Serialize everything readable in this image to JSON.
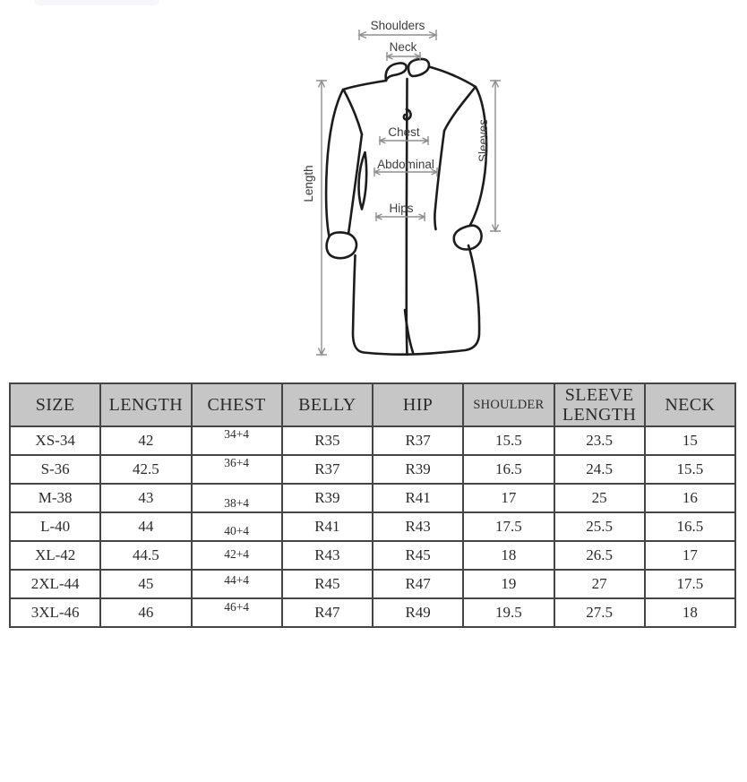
{
  "diagram": {
    "labels": {
      "shoulders": "Shoulders",
      "neck": "Neck",
      "chest": "Chest",
      "abdominal": "Abdominal",
      "hips": "Hips",
      "length": "Length",
      "sleeves": "Sleeves"
    }
  },
  "size_chart": {
    "columns": [
      "SIZE",
      "LENGTH",
      "CHEST",
      "BELLY",
      "HIP",
      "SHOULDER",
      "SLEEVE LENGTH",
      "NECK"
    ],
    "rows": [
      [
        "XS-34",
        "42",
        "34+4",
        "R35",
        "R37",
        "15.5",
        "23.5",
        "15"
      ],
      [
        "S-36",
        "42.5",
        "36+4",
        "R37",
        "R39",
        "16.5",
        "24.5",
        "15.5"
      ],
      [
        "M-38",
        "43",
        "38+4",
        "R39",
        "R41",
        "17",
        "25",
        "16"
      ],
      [
        "L-40",
        "44",
        "40+4",
        "R41",
        "R43",
        "17.5",
        "25.5",
        "16.5"
      ],
      [
        "XL-42",
        "44.5",
        "42+4",
        "R43",
        "R45",
        "18",
        "26.5",
        "17"
      ],
      [
        "2XL-44",
        "45",
        "44+4",
        "R45",
        "R47",
        "19",
        "27",
        "17.5"
      ],
      [
        "3XL-46",
        "46",
        "46+4",
        "R47",
        "R49",
        "19.5",
        "27.5",
        "18"
      ]
    ]
  },
  "colors": {
    "page_bg": "#ffffff",
    "artifact_bg": "#f7f7f9",
    "header_bg": "#c6c6c6",
    "table_border": "#454545",
    "table_text": "#2b2b2b",
    "garment_outline": "#1c1c1c",
    "dimension_line": "#8f8f8f",
    "dimension_text": "#3c3c3c"
  }
}
